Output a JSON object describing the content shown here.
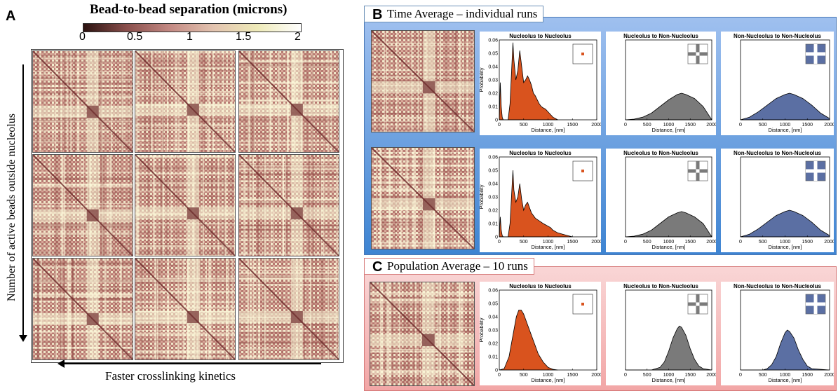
{
  "panel_a": {
    "letter": "A",
    "colorbar_title": "Bead-to-bead separation (microns)",
    "colorbar_ticks": [
      "0",
      "0.5",
      "1",
      "1.5",
      "2"
    ],
    "colorbar_colors": [
      "#2b1210",
      "#8a4f4c",
      "#c48a84",
      "#e3c4b0",
      "#eeeab8",
      "#ffffff"
    ],
    "y_axis_label": "Number of active beads outside nucleolus",
    "x_axis_label": "Faster crosslinking kinetics"
  },
  "panel_b": {
    "letter": "B",
    "title": "Time Average – individual runs",
    "background_colors": [
      "#9fc0ef",
      "#3e84d2"
    ]
  },
  "panel_c": {
    "letter": "C",
    "title": "Population Average – 10 runs",
    "background_colors": [
      "#f9d6d6",
      "#f2a6a6"
    ]
  },
  "plot_labels": {
    "ylabel": "Probability",
    "xlabel": "Distance, [nm]",
    "yticks": [
      "0",
      "0.01",
      "0.02",
      "0.03",
      "0.04",
      "0.05",
      "0.06"
    ],
    "xticks": [
      "0",
      "500",
      "1000",
      "1500",
      "2000"
    ]
  },
  "chart_data": [
    {
      "type": "area",
      "panel": "B-row1",
      "title": "Nucleolus to Nucleolus",
      "color": "#d9531e",
      "xlim": [
        0,
        2000
      ],
      "ylim": [
        0,
        0.06
      ],
      "x": [
        0,
        20,
        40,
        60,
        80,
        100,
        140,
        180,
        220,
        250,
        280,
        300,
        340,
        380,
        420,
        460,
        500,
        540,
        580,
        620,
        660,
        700,
        740,
        780,
        820,
        860,
        900,
        950,
        1000,
        1050,
        1100,
        1150,
        1200
      ],
      "y": [
        0,
        0.028,
        0.01,
        0.002,
        0,
        0,
        0,
        0,
        0.012,
        0.035,
        0.058,
        0.045,
        0.03,
        0.037,
        0.052,
        0.04,
        0.028,
        0.03,
        0.033,
        0.03,
        0.026,
        0.02,
        0.018,
        0.015,
        0.012,
        0.01,
        0.009,
        0.008,
        0.006,
        0.004,
        0.002,
        0.001,
        0
      ]
    },
    {
      "type": "area",
      "panel": "B-row1",
      "title": "Nucleolus to Non-Nucleolus",
      "color": "#7a7a7a",
      "xlim": [
        0,
        2000
      ],
      "ylim": [
        0,
        0.06
      ],
      "x": [
        0,
        200,
        400,
        600,
        800,
        1000,
        1200,
        1300,
        1400,
        1600,
        1800,
        2000
      ],
      "y": [
        0,
        0.0005,
        0.002,
        0.005,
        0.01,
        0.015,
        0.019,
        0.02,
        0.019,
        0.016,
        0.01,
        0
      ]
    },
    {
      "type": "area",
      "panel": "B-row1",
      "title": "Non-Nucleolus to Non-Nucleolus",
      "color": "#5b6fa3",
      "xlim": [
        0,
        2000
      ],
      "ylim": [
        0,
        0.06
      ],
      "x": [
        0,
        200,
        400,
        600,
        800,
        1000,
        1100,
        1200,
        1400,
        1600,
        1800,
        2000
      ],
      "y": [
        0,
        0.002,
        0.006,
        0.011,
        0.016,
        0.019,
        0.02,
        0.019,
        0.016,
        0.011,
        0.005,
        0.001
      ]
    },
    {
      "type": "area",
      "panel": "B-row2",
      "title": "Nucleolus to Nucleolus",
      "color": "#d9531e",
      "xlim": [
        0,
        2000
      ],
      "ylim": [
        0,
        0.06
      ],
      "x": [
        0,
        20,
        40,
        60,
        80,
        100,
        140,
        180,
        220,
        250,
        280,
        300,
        340,
        380,
        420,
        460,
        500,
        540,
        580,
        620,
        660,
        700,
        740,
        780,
        820,
        860,
        900,
        950,
        1000,
        1050,
        1100,
        1200,
        1300,
        1400,
        1500
      ],
      "y": [
        0,
        0.015,
        0.005,
        0.001,
        0,
        0,
        0,
        0,
        0.01,
        0.03,
        0.05,
        0.035,
        0.026,
        0.03,
        0.04,
        0.028,
        0.02,
        0.024,
        0.026,
        0.022,
        0.018,
        0.016,
        0.014,
        0.013,
        0.012,
        0.011,
        0.01,
        0.009,
        0.008,
        0.007,
        0.005,
        0.003,
        0.002,
        0.001,
        0
      ]
    },
    {
      "type": "area",
      "panel": "B-row2",
      "title": "Nucleolus to Non-Nucleolus",
      "color": "#7a7a7a",
      "xlim": [
        0,
        2000
      ],
      "ylim": [
        0,
        0.06
      ],
      "x": [
        0,
        200,
        400,
        600,
        800,
        1000,
        1200,
        1300,
        1400,
        1600,
        1800,
        2000
      ],
      "y": [
        0,
        0.0005,
        0.002,
        0.005,
        0.01,
        0.015,
        0.018,
        0.019,
        0.018,
        0.015,
        0.01,
        0
      ]
    },
    {
      "type": "area",
      "panel": "B-row2",
      "title": "Non-Nucleolus to Non-Nucleolus",
      "color": "#5b6fa3",
      "xlim": [
        0,
        2000
      ],
      "ylim": [
        0,
        0.06
      ],
      "x": [
        0,
        200,
        400,
        600,
        800,
        1000,
        1100,
        1200,
        1400,
        1600,
        1800,
        2000
      ],
      "y": [
        0,
        0.002,
        0.006,
        0.011,
        0.016,
        0.019,
        0.02,
        0.019,
        0.016,
        0.011,
        0.005,
        0.001
      ]
    },
    {
      "type": "area",
      "panel": "C",
      "title": "Nucleolus to Nucleolus",
      "color": "#d9531e",
      "xlim": [
        0,
        2000
      ],
      "ylim": [
        0,
        0.06
      ],
      "x": [
        0,
        100,
        200,
        300,
        350,
        400,
        450,
        500,
        550,
        600,
        700,
        800,
        900,
        1000,
        1100,
        1200
      ],
      "y": [
        0,
        0.001,
        0.01,
        0.03,
        0.04,
        0.045,
        0.045,
        0.042,
        0.037,
        0.032,
        0.022,
        0.012,
        0.006,
        0.002,
        0.0005,
        0
      ]
    },
    {
      "type": "area",
      "panel": "C",
      "title": "Nucleolus to Non-Nucleolus",
      "color": "#7a7a7a",
      "xlim": [
        0,
        2000
      ],
      "ylim": [
        0,
        0.06
      ],
      "x": [
        0,
        600,
        800,
        900,
        1000,
        1100,
        1200,
        1250,
        1300,
        1400,
        1500,
        1600,
        1700,
        1800,
        2000
      ],
      "y": [
        0,
        0,
        0.002,
        0.006,
        0.014,
        0.024,
        0.031,
        0.033,
        0.032,
        0.026,
        0.016,
        0.008,
        0.003,
        0.001,
        0
      ]
    },
    {
      "type": "area",
      "panel": "C",
      "title": "Non-Nucleolus to Non-Nucleolus",
      "color": "#5b6fa3",
      "xlim": [
        0,
        2000
      ],
      "ylim": [
        0,
        0.06
      ],
      "x": [
        0,
        500,
        600,
        700,
        800,
        900,
        1000,
        1050,
        1100,
        1200,
        1300,
        1400,
        1500,
        1600,
        2000
      ],
      "y": [
        0,
        0,
        0.001,
        0.004,
        0.01,
        0.02,
        0.028,
        0.03,
        0.029,
        0.024,
        0.015,
        0.008,
        0.003,
        0.001,
        0
      ]
    }
  ]
}
